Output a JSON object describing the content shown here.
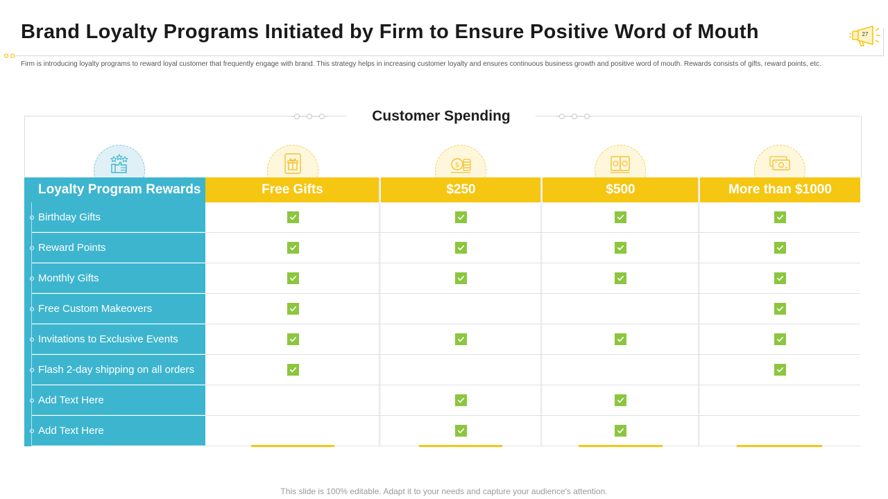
{
  "page": {
    "title": "Brand Loyalty Programs Initiated by Firm to Ensure Positive Word of Mouth",
    "slide_number": "27",
    "subtitle": "Firm is introducing loyalty programs to reward loyal customer that frequently engage with brand. This strategy helps in increasing customer loyalty and ensures continuous business growth and positive word of mouth. Rewards consists of gifts, reward points, etc.",
    "footer": "This slide is 100% editable. Adapt it to your needs and capture your audience's attention."
  },
  "table": {
    "section_title": "Customer Spending",
    "header_label": "Loyalty Program Rewards",
    "columns": [
      {
        "label": "Free Gifts",
        "icon": "gift-icon"
      },
      {
        "label": "$250",
        "icon": "coins-icon"
      },
      {
        "label": "$500",
        "icon": "money-stack-icon"
      },
      {
        "label": "More than $1000",
        "icon": "banknote-icon"
      }
    ],
    "label_icon": "thumbs-up-stars-icon",
    "rows": [
      {
        "label": "Birthday Gifts",
        "checks": [
          true,
          true,
          true,
          true
        ]
      },
      {
        "label": "Reward Points",
        "checks": [
          true,
          true,
          true,
          true
        ]
      },
      {
        "label": "Monthly Gifts",
        "checks": [
          true,
          true,
          true,
          true
        ]
      },
      {
        "label": "Free Custom Makeovers",
        "checks": [
          true,
          false,
          false,
          true
        ]
      },
      {
        "label": "Invitations to Exclusive Events",
        "checks": [
          true,
          true,
          true,
          true
        ]
      },
      {
        "label": "Flash 2-day shipping on all orders",
        "checks": [
          true,
          false,
          false,
          true
        ]
      },
      {
        "label": "Add Text Here",
        "checks": [
          false,
          true,
          true,
          false
        ]
      },
      {
        "label": "Add Text Here",
        "checks": [
          false,
          true,
          true,
          false
        ]
      }
    ]
  },
  "colors": {
    "accent_blue": "#3db5cf",
    "accent_yellow": "#f5c612",
    "check_green": "#8cc63f"
  }
}
